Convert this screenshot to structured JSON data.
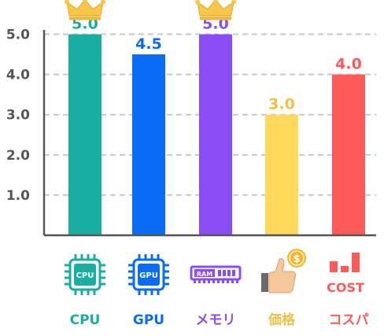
{
  "chart_data": {
    "type": "bar",
    "categories": [
      "CPU",
      "GPU",
      "メモリ",
      "価格",
      "コスパ"
    ],
    "values": [
      5.0,
      4.5,
      5.0,
      3.0,
      4.0
    ],
    "value_labels": [
      "5.0",
      "4.5",
      "5.0",
      "3.0",
      "4.0"
    ],
    "colors": [
      "#1aaea3",
      "#0a6cf5",
      "#8a4df5",
      "#ffd95c",
      "#ff5a5a"
    ],
    "label_colors": [
      "#1aaea3",
      "#0a6cf5",
      "#8a4df5",
      "#f2c044",
      "#ff5a5a"
    ],
    "crowned": [
      true,
      false,
      true,
      false,
      false
    ],
    "icons": [
      "cpu-chip-icon",
      "gpu-chip-icon",
      "ram-module-icon",
      "thumbs-up-coin-icon",
      "cost-bars-icon"
    ],
    "icon_texts": [
      "CPU",
      "GPU",
      "RAM",
      "$",
      "COST"
    ],
    "yticks": [
      1.0,
      2.0,
      3.0,
      4.0,
      5.0
    ],
    "ytick_labels": [
      "1.0",
      "2.0",
      "3.0",
      "4.0",
      "5.0"
    ],
    "ylim": [
      0,
      5.5
    ],
    "grid": true
  }
}
